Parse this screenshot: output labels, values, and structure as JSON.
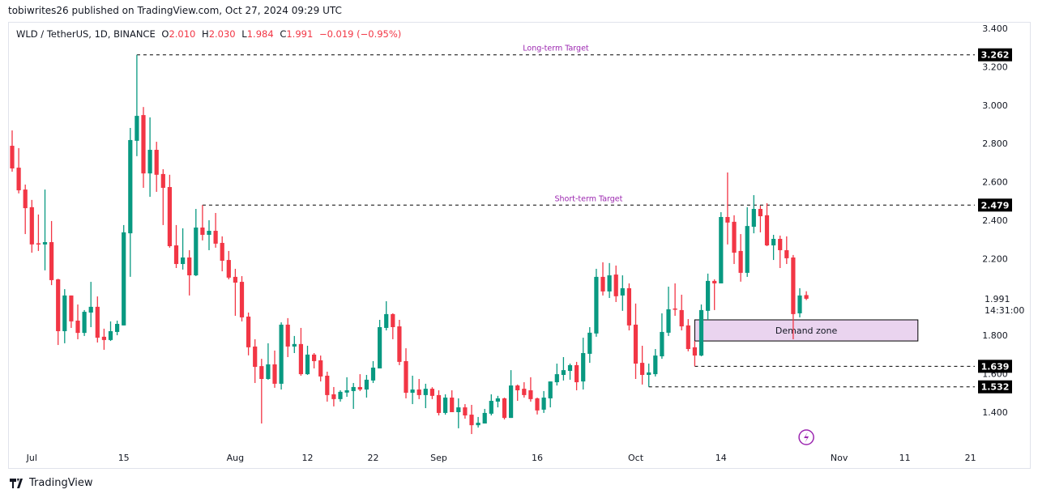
{
  "header": {
    "published": "tobiwrites26 published on TradingView.com, Oct 27, 2024 09:29 UTC",
    "symbol": "WLD / TetherUS, 1D, BINANCE",
    "o_label": "O",
    "o_value": "2.010",
    "h_label": "H",
    "h_value": "2.030",
    "l_label": "L",
    "l_value": "1.984",
    "c_label": "C",
    "c_value": "1.991",
    "change": "−0.019 (−0.95%)"
  },
  "footer": {
    "brand": "TradingView"
  },
  "colors": {
    "up": "#089981",
    "down": "#f23645",
    "annotation": "#9c27b0",
    "zone_fill": "#ead4ef",
    "text": "#131722"
  },
  "chart_data": {
    "type": "candlestick",
    "grid": false,
    "ylim": [
      1.25,
      3.45
    ],
    "y_scale": "linear",
    "y_ticks": [
      "3.400",
      "3.200",
      "3.000",
      "2.800",
      "2.600",
      "2.400",
      "2.200",
      "1.800",
      "1.600",
      "1.400"
    ],
    "y_tick_values": [
      3.4,
      3.2,
      3.0,
      2.8,
      2.6,
      2.4,
      2.2,
      1.8,
      1.6,
      1.4
    ],
    "x_ticks": [
      {
        "label": "Jul",
        "date": "2024-07-01"
      },
      {
        "label": "15",
        "date": "2024-07-15"
      },
      {
        "label": "Aug",
        "date": "2024-08-01"
      },
      {
        "label": "12",
        "date": "2024-08-12"
      },
      {
        "label": "22",
        "date": "2024-08-22"
      },
      {
        "label": "Sep",
        "date": "2024-09-01"
      },
      {
        "label": "16",
        "date": "2024-09-16"
      },
      {
        "label": "Oct",
        "date": "2024-10-01"
      },
      {
        "label": "14",
        "date": "2024-10-14"
      },
      {
        "label": "Nov",
        "date": "2024-11-01"
      },
      {
        "label": "11",
        "date": "2024-11-11"
      },
      {
        "label": "21",
        "date": "2024-11-21"
      }
    ],
    "last_price": {
      "label": "1.991",
      "value": 1.991,
      "countdown": "14:31:00"
    },
    "levels": [
      {
        "name": "Long-term Target",
        "price": 3.262,
        "label": "3.262",
        "from": "2024-07-17",
        "text": "Long-term Target"
      },
      {
        "name": "Short-term Target",
        "price": 2.479,
        "label": "2.479",
        "from": "2024-07-27",
        "text": "Short-term Target"
      },
      {
        "name": "support-1",
        "price": 1.639,
        "label": "1.639",
        "from": "2024-10-10",
        "text": ""
      },
      {
        "name": "support-2",
        "price": 1.532,
        "label": "1.532",
        "from": "2024-10-03",
        "text": ""
      }
    ],
    "zone": {
      "text": "Demand zone",
      "low": 1.771,
      "high": 1.881,
      "from": "2024-10-10",
      "to": "2024-11-13"
    },
    "event_icon": {
      "icon": "lightning-icon",
      "date": "2024-10-27"
    },
    "candle_fields": [
      "date",
      "open",
      "high",
      "low",
      "close"
    ],
    "candles": [
      [
        "2024-06-28",
        2.788,
        2.868,
        2.653,
        2.67
      ],
      [
        "2024-06-29",
        2.674,
        2.776,
        2.54,
        2.556
      ],
      [
        "2024-06-30",
        2.56,
        2.586,
        2.328,
        2.463
      ],
      [
        "2024-07-01",
        2.468,
        2.506,
        2.231,
        2.274
      ],
      [
        "2024-07-02",
        2.28,
        2.43,
        2.24,
        2.277
      ],
      [
        "2024-07-03",
        2.274,
        2.56,
        2.139,
        2.286
      ],
      [
        "2024-07-04",
        2.286,
        2.396,
        2.062,
        2.088
      ],
      [
        "2024-07-05",
        2.092,
        2.095,
        1.75,
        1.822
      ],
      [
        "2024-07-06",
        1.822,
        2.041,
        1.759,
        2.008
      ],
      [
        "2024-07-07",
        2.008,
        2.008,
        1.839,
        1.873
      ],
      [
        "2024-07-08",
        1.877,
        1.961,
        1.78,
        1.813
      ],
      [
        "2024-07-09",
        1.813,
        1.932,
        1.797,
        1.923
      ],
      [
        "2024-07-10",
        1.919,
        2.079,
        1.843,
        1.949
      ],
      [
        "2024-07-11",
        1.949,
        2.003,
        1.763,
        1.788
      ],
      [
        "2024-07-12",
        1.793,
        1.835,
        1.725,
        1.776
      ],
      [
        "2024-07-13",
        1.776,
        1.873,
        1.771,
        1.822
      ],
      [
        "2024-07-14",
        1.818,
        1.877,
        1.801,
        1.86
      ],
      [
        "2024-07-15",
        1.852,
        2.375,
        1.852,
        2.337
      ],
      [
        "2024-07-16",
        2.332,
        2.881,
        2.105,
        2.818
      ],
      [
        "2024-07-17",
        2.814,
        3.262,
        2.734,
        2.944
      ],
      [
        "2024-07-18",
        2.948,
        2.99,
        2.569,
        2.644
      ],
      [
        "2024-07-19",
        2.644,
        2.936,
        2.522,
        2.767
      ],
      [
        "2024-07-20",
        2.767,
        2.809,
        2.548,
        2.637
      ],
      [
        "2024-07-21",
        2.641,
        2.666,
        2.375,
        2.569
      ],
      [
        "2024-07-22",
        2.573,
        2.637,
        2.257,
        2.265
      ],
      [
        "2024-07-23",
        2.269,
        2.375,
        2.151,
        2.172
      ],
      [
        "2024-07-24",
        2.172,
        2.358,
        2.143,
        2.206
      ],
      [
        "2024-07-25",
        2.206,
        2.244,
        2.008,
        2.113
      ],
      [
        "2024-07-26",
        2.113,
        2.459,
        2.109,
        2.362
      ],
      [
        "2024-07-27",
        2.362,
        2.479,
        2.295,
        2.324
      ],
      [
        "2024-07-28",
        2.324,
        2.4,
        2.244,
        2.345
      ],
      [
        "2024-07-29",
        2.345,
        2.438,
        2.257,
        2.278
      ],
      [
        "2024-07-30",
        2.282,
        2.316,
        2.134,
        2.189
      ],
      [
        "2024-07-31",
        2.193,
        2.24,
        2.092,
        2.101
      ],
      [
        "2024-08-01",
        2.105,
        2.147,
        1.902,
        2.075
      ],
      [
        "2024-08-02",
        2.079,
        2.109,
        1.873,
        1.894
      ],
      [
        "2024-08-03",
        1.898,
        1.919,
        1.696,
        1.738
      ],
      [
        "2024-08-04",
        1.742,
        1.78,
        1.552,
        1.636
      ],
      [
        "2024-08-05",
        1.64,
        1.678,
        1.341,
        1.573
      ],
      [
        "2024-08-06",
        1.573,
        1.759,
        1.569,
        1.649
      ],
      [
        "2024-08-07",
        1.649,
        1.721,
        1.527,
        1.548
      ],
      [
        "2024-08-08",
        1.548,
        1.868,
        1.518,
        1.856
      ],
      [
        "2024-08-09",
        1.856,
        1.89,
        1.687,
        1.742
      ],
      [
        "2024-08-10",
        1.742,
        1.797,
        1.708,
        1.755
      ],
      [
        "2024-08-11",
        1.755,
        1.839,
        1.59,
        1.598
      ],
      [
        "2024-08-12",
        1.598,
        1.746,
        1.594,
        1.7
      ],
      [
        "2024-08-13",
        1.7,
        1.708,
        1.628,
        1.666
      ],
      [
        "2024-08-14",
        1.67,
        1.695,
        1.56,
        1.586
      ],
      [
        "2024-08-15",
        1.59,
        1.611,
        1.455,
        1.489
      ],
      [
        "2024-08-16",
        1.493,
        1.531,
        1.43,
        1.468
      ],
      [
        "2024-08-17",
        1.468,
        1.514,
        1.455,
        1.506
      ],
      [
        "2024-08-18",
        1.502,
        1.582,
        1.48,
        1.514
      ],
      [
        "2024-08-19",
        1.51,
        1.552,
        1.417,
        1.531
      ],
      [
        "2024-08-20",
        1.531,
        1.598,
        1.51,
        1.518
      ],
      [
        "2024-08-21",
        1.518,
        1.594,
        1.476,
        1.569
      ],
      [
        "2024-08-22",
        1.565,
        1.666,
        1.552,
        1.632
      ],
      [
        "2024-08-23",
        1.628,
        1.881,
        1.628,
        1.843
      ],
      [
        "2024-08-24",
        1.839,
        1.978,
        1.826,
        1.911
      ],
      [
        "2024-08-25",
        1.911,
        1.915,
        1.78,
        1.843
      ],
      [
        "2024-08-26",
        1.847,
        1.881,
        1.645,
        1.662
      ],
      [
        "2024-08-27",
        1.666,
        1.733,
        1.472,
        1.501
      ],
      [
        "2024-08-28",
        1.501,
        1.59,
        1.442,
        1.518
      ],
      [
        "2024-08-29",
        1.518,
        1.573,
        1.468,
        1.489
      ],
      [
        "2024-08-30",
        1.489,
        1.548,
        1.421,
        1.522
      ],
      [
        "2024-08-31",
        1.522,
        1.53,
        1.468,
        1.485
      ],
      [
        "2024-09-01",
        1.489,
        1.514,
        1.383,
        1.396
      ],
      [
        "2024-09-02",
        1.396,
        1.493,
        1.387,
        1.476
      ],
      [
        "2024-09-03",
        1.476,
        1.514,
        1.4,
        1.4
      ],
      [
        "2024-09-04",
        1.4,
        1.472,
        1.316,
        1.425
      ],
      [
        "2024-09-05",
        1.425,
        1.442,
        1.366,
        1.383
      ],
      [
        "2024-09-06",
        1.387,
        1.438,
        1.286,
        1.332
      ],
      [
        "2024-09-07",
        1.332,
        1.375,
        1.32,
        1.345
      ],
      [
        "2024-09-08",
        1.341,
        1.417,
        1.341,
        1.396
      ],
      [
        "2024-09-09",
        1.392,
        1.493,
        1.383,
        1.459
      ],
      [
        "2024-09-10",
        1.455,
        1.485,
        1.425,
        1.472
      ],
      [
        "2024-09-11",
        1.472,
        1.476,
        1.362,
        1.37
      ],
      [
        "2024-09-12",
        1.37,
        1.619,
        1.37,
        1.539
      ],
      [
        "2024-09-13",
        1.539,
        1.544,
        1.459,
        1.514
      ],
      [
        "2024-09-14",
        1.522,
        1.556,
        1.476,
        1.489
      ],
      [
        "2024-09-15",
        1.514,
        1.582,
        1.455,
        1.468
      ],
      [
        "2024-09-16",
        1.472,
        1.476,
        1.388,
        1.409
      ],
      [
        "2024-09-17",
        1.413,
        1.51,
        1.396,
        1.476
      ],
      [
        "2024-09-18",
        1.472,
        1.56,
        1.425,
        1.56
      ],
      [
        "2024-09-19",
        1.556,
        1.653,
        1.539,
        1.598
      ],
      [
        "2024-09-20",
        1.594,
        1.687,
        1.565,
        1.619
      ],
      [
        "2024-09-21",
        1.615,
        1.653,
        1.569,
        1.645
      ],
      [
        "2024-09-22",
        1.645,
        1.662,
        1.514,
        1.556
      ],
      [
        "2024-09-23",
        1.56,
        1.788,
        1.518,
        1.708
      ],
      [
        "2024-09-24",
        1.704,
        1.843,
        1.657,
        1.814
      ],
      [
        "2024-09-25",
        1.81,
        2.147,
        1.793,
        2.105
      ],
      [
        "2024-09-26",
        2.105,
        2.181,
        2.008,
        2.029
      ],
      [
        "2024-09-27",
        2.029,
        2.177,
        1.995,
        2.113
      ],
      [
        "2024-09-28",
        2.117,
        2.164,
        1.974,
        2.004
      ],
      [
        "2024-09-29",
        2.008,
        2.113,
        1.928,
        2.046
      ],
      [
        "2024-09-30",
        2.046,
        2.071,
        1.826,
        1.852
      ],
      [
        "2024-10-01",
        1.856,
        1.966,
        1.573,
        1.653
      ],
      [
        "2024-10-02",
        1.657,
        1.746,
        1.544,
        1.594
      ],
      [
        "2024-10-03",
        1.594,
        1.653,
        1.532,
        1.607
      ],
      [
        "2024-10-04",
        1.598,
        1.729,
        1.586,
        1.695
      ],
      [
        "2024-10-05",
        1.691,
        1.915,
        1.678,
        1.818
      ],
      [
        "2024-10-06",
        1.814,
        2.054,
        1.797,
        1.936
      ],
      [
        "2024-10-07",
        1.94,
        2.071,
        1.902,
        1.936
      ],
      [
        "2024-10-08",
        1.932,
        2.012,
        1.826,
        1.847
      ],
      [
        "2024-10-09",
        1.852,
        1.885,
        1.717,
        1.729
      ],
      [
        "2024-10-10",
        1.738,
        1.771,
        1.639,
        1.695
      ],
      [
        "2024-10-11",
        1.695,
        1.961,
        1.691,
        1.932
      ],
      [
        "2024-10-12",
        1.928,
        2.122,
        1.881,
        2.084
      ],
      [
        "2024-10-13",
        2.084,
        2.092,
        1.932,
        2.071
      ],
      [
        "2024-10-14",
        2.071,
        2.442,
        2.071,
        2.417
      ],
      [
        "2024-10-15",
        2.417,
        2.649,
        2.274,
        2.388
      ],
      [
        "2024-10-16",
        2.392,
        2.426,
        2.172,
        2.231
      ],
      [
        "2024-10-17",
        2.24,
        2.328,
        2.08,
        2.126
      ],
      [
        "2024-10-18",
        2.126,
        2.468,
        2.105,
        2.37
      ],
      [
        "2024-10-19",
        2.366,
        2.531,
        2.332,
        2.459
      ],
      [
        "2024-10-20",
        2.459,
        2.476,
        2.337,
        2.421
      ],
      [
        "2024-10-21",
        2.426,
        2.489,
        2.265,
        2.269
      ],
      [
        "2024-10-22",
        2.269,
        2.324,
        2.193,
        2.303
      ],
      [
        "2024-10-23",
        2.303,
        2.32,
        2.151,
        2.244
      ],
      [
        "2024-10-24",
        2.244,
        2.316,
        2.172,
        2.202
      ],
      [
        "2024-10-25",
        2.206,
        2.219,
        1.78,
        1.911
      ],
      [
        "2024-10-26",
        1.915,
        2.046,
        1.894,
        2.008
      ],
      [
        "2024-10-27",
        2.01,
        2.03,
        1.984,
        1.991
      ]
    ]
  }
}
